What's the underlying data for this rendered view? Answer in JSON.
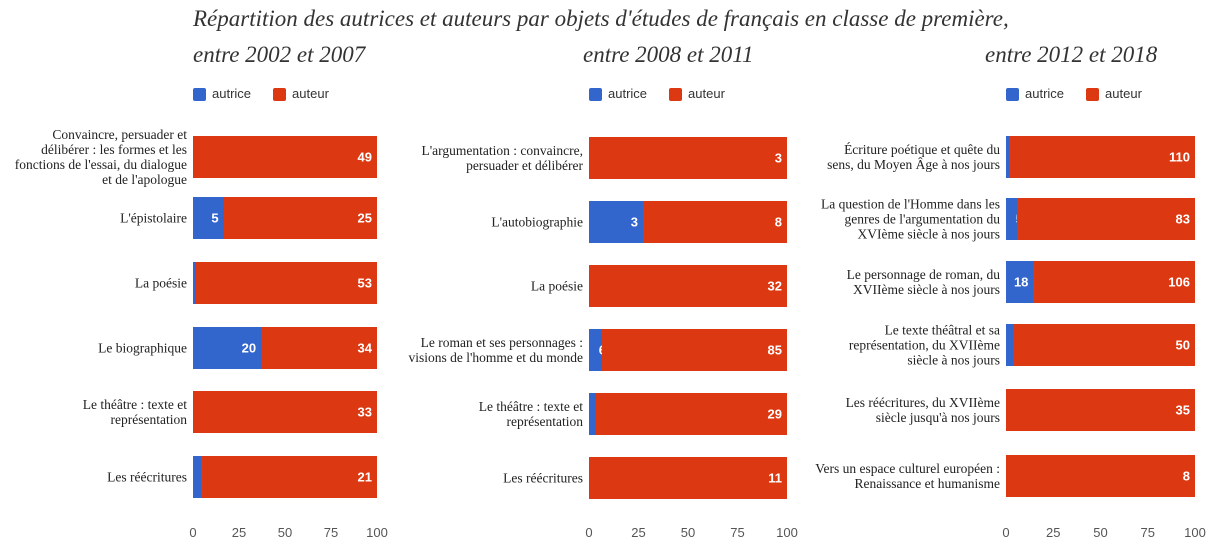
{
  "title": "Répartition des autrices et auteurs par objets d'études de français en classe de première,",
  "chart_data": [
    {
      "type": "bar",
      "orientation": "horizontal",
      "stacked": "percent",
      "subtitle": "entre 2002 et 2007",
      "categories": [
        "Convaincre, persuader et délibérer : les formes et les fonctions de l'essai, du dialogue et de l'apologue",
        "L'épistolaire",
        "La poésie",
        "Le biographique",
        "Le théâtre : texte et représentation",
        "Les réécritures"
      ],
      "series": [
        {
          "name": "autrice",
          "color": "#3366cc",
          "values": [
            0,
            5,
            1,
            20,
            0,
            1
          ]
        },
        {
          "name": "auteur",
          "color": "#dc3912",
          "values": [
            49,
            25,
            53,
            34,
            33,
            21
          ]
        }
      ],
      "xlim": [
        0,
        100
      ],
      "xticks": [
        0,
        25,
        50,
        75,
        100
      ],
      "grid": false,
      "legend": "top-left"
    },
    {
      "type": "bar",
      "orientation": "horizontal",
      "stacked": "percent",
      "subtitle": "entre 2008 et 2011",
      "categories": [
        "L'argumentation : convaincre, persuader et délibérer",
        "L'autobiographie",
        "La poésie",
        "Le roman et ses personnages : visions de l'homme et du monde",
        "Le théâtre : texte et représentation",
        "Les réécritures"
      ],
      "series": [
        {
          "name": "autrice",
          "color": "#3366cc",
          "values": [
            0,
            3,
            0,
            6,
            1,
            0
          ]
        },
        {
          "name": "auteur",
          "color": "#dc3912",
          "values": [
            3,
            8,
            32,
            85,
            29,
            11
          ]
        }
      ],
      "xlim": [
        0,
        100
      ],
      "xticks": [
        0,
        25,
        50,
        75,
        100
      ],
      "grid": false,
      "legend": "top-left"
    },
    {
      "type": "bar",
      "orientation": "horizontal",
      "stacked": "percent",
      "subtitle": "entre 2012 et 2018",
      "categories": [
        "Écriture poétique et quête du sens, du Moyen Âge à nos jours",
        "La question de l'Homme dans les genres de l'argumentation du XVIème siècle à nos jours",
        "Le personnage de roman, du XVIIème siècle à nos jours",
        "Le texte théâtral et sa représentation, du XVIIème siècle à nos jours",
        "Les réécritures, du XVIIème siècle jusqu'à nos jours",
        "Vers un espace culturel européen : Renaissance et humanisme"
      ],
      "series": [
        {
          "name": "autrice",
          "color": "#3366cc",
          "values": [
            2,
            5,
            18,
            2,
            0,
            0
          ]
        },
        {
          "name": "auteur",
          "color": "#dc3912",
          "values": [
            110,
            83,
            106,
            50,
            35,
            8
          ]
        }
      ],
      "xlim": [
        0,
        100
      ],
      "xticks": [
        0,
        25,
        50,
        75,
        100
      ],
      "grid": false,
      "legend": "top-left"
    }
  ]
}
